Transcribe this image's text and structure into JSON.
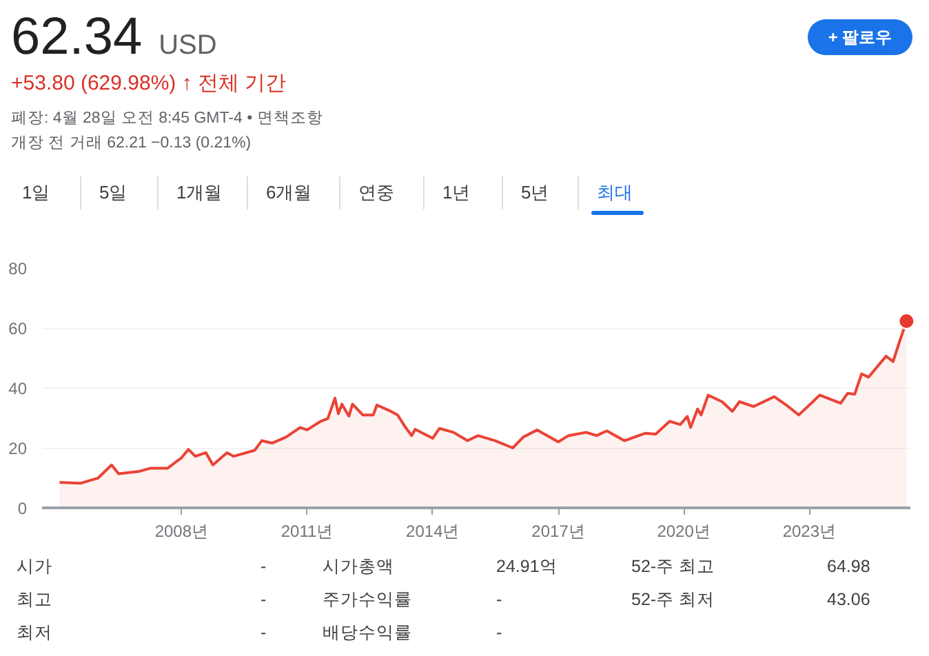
{
  "chart_data": {
    "type": "area",
    "title": "62.34",
    "subtitle": "USD",
    "annotations": [
      "+53.80 (629.98%) ↑ 전체 기간",
      "폐장: 4월 28일 오전 8:45 GMT-4 • 면책조항",
      "개장 전 거래 62.21 −0.13 (0.21%)",
      "+ 팔로우",
      "1일",
      "5일",
      "1개월",
      "6개월",
      "연중",
      "1년",
      "5년",
      "최대",
      "시가",
      "-",
      "시가총액",
      "24.91억",
      "52-주 최고",
      "64.98",
      "최고",
      "-",
      "주가수익률",
      "-",
      "52-주 최저",
      "43.06",
      "최저",
      "-",
      "배당수익률",
      "-"
    ],
    "series": [
      {
        "color": "#ea4335",
        "x": [
          "2005-02",
          "2005-08",
          "2006-01",
          "2006-05",
          "2006-07",
          "2007-01",
          "2007-04",
          "2007-09",
          "2008-01",
          "2008-03",
          "2008-05",
          "2008-08",
          "2008-10",
          "2009-02",
          "2009-04",
          "2009-10",
          "2009-12",
          "2010-03",
          "2010-07",
          "2010-11",
          "2011-01",
          "2011-05",
          "2011-07",
          "2011-09",
          "2011-10",
          "2011-11",
          "2012-01",
          "2012-02",
          "2012-05",
          "2012-08",
          "2012-09",
          "2013-01",
          "2013-03",
          "2013-05",
          "2013-07",
          "2013-08",
          "2014-01",
          "2014-03",
          "2014-07",
          "2014-11",
          "2015-02",
          "2015-07",
          "2015-12",
          "2016-03",
          "2016-07",
          "2017-01",
          "2017-04",
          "2017-09",
          "2017-12",
          "2018-03",
          "2018-08",
          "2019-02",
          "2019-05",
          "2019-09",
          "2019-12",
          "2020-02",
          "2020-03",
          "2020-05",
          "2020-06",
          "2020-08",
          "2020-12",
          "2021-03",
          "2021-05",
          "2021-09",
          "2022-03",
          "2022-07",
          "2022-10",
          "2023-02",
          "2023-04",
          "2023-10",
          "2023-12",
          "2024-02",
          "2024-04",
          "2024-06",
          "2024-11",
          "2025-01",
          "2025-03",
          "2025-04-28"
        ],
        "values": [
          8.5,
          8.2,
          9.9,
          14.3,
          11.4,
          12.2,
          13.2,
          13.2,
          16.7,
          19.5,
          17.2,
          18.4,
          14.3,
          18.4,
          17.2,
          19.2,
          22.4,
          21.6,
          23.6,
          26.8,
          26.0,
          28.9,
          29.8,
          36.6,
          31.4,
          34.6,
          30.6,
          34.6,
          31.0,
          31.0,
          34.3,
          32.2,
          31.0,
          27.3,
          24.1,
          26.2,
          23.2,
          26.5,
          25.2,
          22.4,
          24.1,
          22.4,
          20.0,
          23.6,
          26.0,
          22.0,
          24.1,
          25.2,
          24.1,
          25.7,
          22.4,
          24.9,
          24.6,
          28.9,
          27.8,
          30.5,
          26.8,
          33.0,
          31.0,
          37.6,
          35.4,
          32.2,
          35.4,
          33.8,
          37.1,
          33.8,
          31.0,
          35.4,
          37.6,
          34.9,
          38.2,
          37.9,
          44.7,
          43.6,
          50.6,
          48.8,
          55.8,
          62.3
        ]
      },
      {
        "type": "scatter",
        "color": "#e53b2f",
        "x": [
          "2025-04-28"
        ],
        "values": [
          62.3
        ]
      }
    ],
    "xlim": [
      "2004-09",
      "2025-06"
    ],
    "ylim": [
      0,
      80
    ],
    "xticks": [
      {
        "value": "2008",
        "label": "2008년"
      },
      {
        "value": "2011",
        "label": "2011년"
      },
      {
        "value": "2014",
        "label": "2014년"
      },
      {
        "value": "2017",
        "label": "2017년"
      },
      {
        "value": "2020",
        "label": "2020년"
      },
      {
        "value": "2023",
        "label": "2023년"
      }
    ],
    "yticks": [
      0,
      20,
      40,
      60,
      80
    ],
    "grid": "y"
  }
}
